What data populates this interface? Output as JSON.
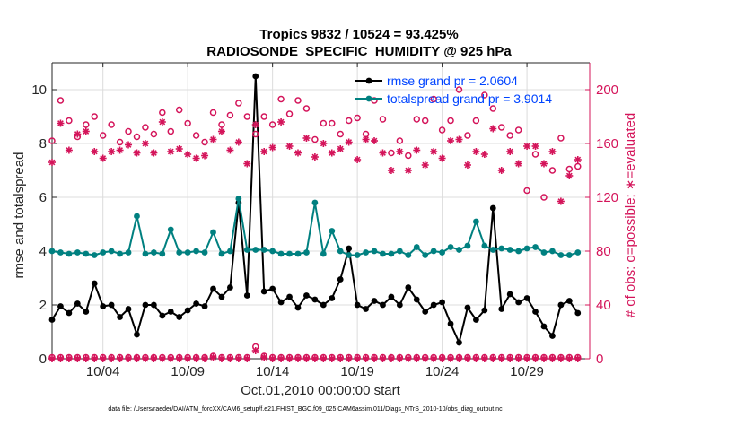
{
  "chart_data": {
    "type": "line",
    "title": "Tropics 9832 / 10524 = 93.425%",
    "subtitle": "RADIOSONDE_SPECIFIC_HUMIDITY @ 925 hPa",
    "xlabel": "Oct.01,2010 00:00:00 start",
    "ylabel_left": "rmse and totalspread",
    "ylabel_right": "# of obs: o=possible; ∗=evaluated",
    "footer": "data file: /Users/raeder/DAI/ATM_forcXX/CAM6_setup/f.e21.FHIST_BGC.f09_025.CAM6assim.011/Diags_NTrS_2010-10/obs_diag_output.nc",
    "xlim": [
      1,
      32.7
    ],
    "ylim_left": [
      0,
      11
    ],
    "ylim_right": [
      0,
      220
    ],
    "x_ticks": [
      4,
      9,
      14,
      19,
      24,
      29
    ],
    "x_tick_labels": [
      "10/04",
      "10/09",
      "10/14",
      "10/19",
      "10/24",
      "10/29"
    ],
    "y_ticks_left": [
      0,
      2,
      4,
      6,
      8,
      10
    ],
    "y_ticks_right": [
      0,
      40,
      80,
      120,
      160,
      200
    ],
    "grid": true,
    "colors": {
      "rmse": "#000000",
      "totalspread": "#008080",
      "obs": "#d4145a",
      "legend_text": "#0044ff"
    },
    "series": [
      {
        "name": "rmse grand pr = 2.0604",
        "axis": "left",
        "style": "line-markers",
        "x": [
          1,
          1.5,
          2,
          2.5,
          3,
          3.5,
          4,
          4.5,
          5,
          5.5,
          6,
          6.5,
          7,
          7.5,
          8,
          8.5,
          9,
          9.5,
          10,
          10.5,
          11,
          11.5,
          12,
          12.5,
          13,
          13.5,
          14,
          14.5,
          15,
          15.5,
          16,
          16.5,
          17,
          17.5,
          18,
          18.5,
          19,
          19.5,
          20,
          20.5,
          21,
          21.5,
          22,
          22.5,
          23,
          23.5,
          24,
          24.5,
          25,
          25.5,
          26,
          26.5,
          27,
          27.5,
          28,
          28.5,
          29,
          29.5,
          30,
          30.5,
          31,
          31.5,
          32
        ],
        "values": [
          1.45,
          1.95,
          1.7,
          2.05,
          1.75,
          2.8,
          1.95,
          2.0,
          1.55,
          1.85,
          0.9,
          2.0,
          2.0,
          1.6,
          1.75,
          1.55,
          1.8,
          2.05,
          1.95,
          2.6,
          2.3,
          2.65,
          5.8,
          2.35,
          10.5,
          2.5,
          2.6,
          2.1,
          2.3,
          1.9,
          2.35,
          2.2,
          2.0,
          2.25,
          2.95,
          4.1,
          2.0,
          1.85,
          2.15,
          2.0,
          2.3,
          2.0,
          2.65,
          2.2,
          1.75,
          2.0,
          2.1,
          1.3,
          0.6,
          1.9,
          1.45,
          1.8,
          5.6,
          1.85,
          2.4,
          2.1,
          2.25,
          1.75,
          1.2,
          0.85,
          2.0,
          2.15,
          1.7
        ]
      },
      {
        "name": "totalspread grand pr = 3.9014",
        "axis": "left",
        "style": "line-markers",
        "x": [
          1,
          1.5,
          2,
          2.5,
          3,
          3.5,
          4,
          4.5,
          5,
          5.5,
          6,
          6.5,
          7,
          7.5,
          8,
          8.5,
          9,
          9.5,
          10,
          10.5,
          11,
          11.5,
          12,
          12.5,
          13,
          13.5,
          14,
          14.5,
          15,
          15.5,
          16,
          16.5,
          17,
          17.5,
          18,
          18.5,
          19,
          19.5,
          20,
          20.5,
          21,
          21.5,
          22,
          22.5,
          23,
          23.5,
          24,
          24.5,
          25,
          25.5,
          26,
          26.5,
          27,
          27.5,
          28,
          28.5,
          29,
          29.5,
          30,
          30.5,
          31,
          31.5,
          32
        ],
        "values": [
          4.0,
          3.95,
          3.9,
          3.95,
          3.9,
          3.85,
          3.95,
          4.0,
          3.9,
          3.95,
          5.3,
          3.9,
          3.95,
          3.9,
          4.8,
          3.95,
          3.95,
          4.0,
          3.95,
          4.7,
          3.9,
          4.0,
          5.95,
          4.05,
          4.05,
          4.05,
          4.0,
          3.9,
          3.9,
          3.9,
          3.95,
          5.8,
          3.9,
          4.75,
          4.0,
          3.85,
          3.85,
          3.95,
          4.0,
          3.9,
          3.9,
          4.0,
          3.85,
          4.15,
          3.85,
          4.0,
          3.95,
          4.15,
          4.05,
          4.2,
          5.1,
          4.2,
          4.05,
          4.1,
          4.05,
          4.0,
          4.1,
          4.15,
          3.95,
          4.0,
          3.85,
          3.85,
          3.95
        ]
      },
      {
        "name": "obs possible",
        "axis": "right",
        "style": "circles",
        "x": [
          1,
          1.5,
          2,
          2.5,
          3,
          3.5,
          4,
          4.5,
          5,
          5.5,
          6,
          6.5,
          7,
          7.5,
          8,
          8.5,
          9,
          9.5,
          10,
          10.5,
          11,
          11.5,
          12,
          12.5,
          13,
          13.5,
          14,
          14.5,
          15,
          15.5,
          16,
          16.5,
          17,
          17.5,
          18,
          18.5,
          19,
          19.5,
          20,
          20.5,
          21,
          21.5,
          22,
          22.5,
          23,
          23.5,
          24,
          24.5,
          25,
          25.5,
          26,
          26.5,
          27,
          27.5,
          28,
          28.5,
          29,
          29.5,
          30,
          30.5,
          31,
          31.5,
          32
        ],
        "values": [
          162,
          192,
          177,
          165,
          174,
          180,
          166,
          174,
          161,
          169,
          165,
          172,
          167,
          183,
          169,
          185,
          175,
          166,
          161,
          183,
          174,
          181,
          190,
          180,
          167,
          180,
          174,
          193,
          182,
          192,
          186,
          163,
          175,
          175,
          167,
          177,
          179,
          167,
          192,
          178,
          153,
          162,
          151,
          178,
          177,
          193,
          170,
          177,
          200,
          166,
          177,
          196,
          186,
          172,
          166,
          170,
          125,
          152,
          120,
          140,
          164,
          141,
          143
        ]
      },
      {
        "name": "obs evaluated",
        "axis": "right",
        "style": "stars",
        "x": [
          1,
          1.5,
          2,
          2.5,
          3,
          3.5,
          4,
          4.5,
          5,
          5.5,
          6,
          6.5,
          7,
          7.5,
          8,
          8.5,
          9,
          9.5,
          10,
          10.5,
          11,
          11.5,
          12,
          12.5,
          13,
          13.5,
          14,
          14.5,
          15,
          15.5,
          16,
          16.5,
          17,
          17.5,
          18,
          18.5,
          19,
          19.5,
          20,
          20.5,
          21,
          21.5,
          22,
          22.5,
          23,
          23.5,
          24,
          24.5,
          25,
          25.5,
          26,
          26.5,
          27,
          27.5,
          28,
          28.5,
          29,
          29.5,
          30,
          30.5,
          31,
          31.5,
          32
        ],
        "values": [
          146,
          175,
          155,
          167,
          169,
          154,
          149,
          154,
          155,
          159,
          153,
          160,
          153,
          176,
          154,
          156,
          152,
          149,
          151,
          163,
          169,
          155,
          161,
          145,
          174,
          154,
          157,
          176,
          158,
          153,
          164,
          150,
          160,
          153,
          156,
          161,
          148,
          163,
          162,
          153,
          140,
          154,
          140,
          155,
          144,
          154,
          149,
          162,
          163,
          144,
          154,
          152,
          171,
          140,
          154,
          145,
          158,
          158,
          145,
          154,
          117,
          136,
          148
        ]
      },
      {
        "name": "obs bottom possible",
        "axis": "right",
        "style": "circles",
        "x": [
          1,
          1.5,
          2,
          2.5,
          3,
          3.5,
          4,
          4.5,
          5,
          5.5,
          6,
          6.5,
          7,
          7.5,
          8,
          8.5,
          9,
          9.5,
          10,
          10.5,
          11,
          11.5,
          12,
          12.5,
          13,
          13.5,
          14,
          14.5,
          15,
          15.5,
          16,
          16.5,
          17,
          17.5,
          18,
          18.5,
          19,
          19.5,
          20,
          20.5,
          21,
          21.5,
          22,
          22.5,
          23,
          23.5,
          24,
          24.5,
          25,
          25.5,
          26,
          26.5,
          27,
          27.5,
          28,
          28.5,
          29,
          29.5,
          30,
          30.5,
          31,
          31.5,
          32
        ],
        "values": [
          1,
          1,
          1,
          1,
          1,
          1,
          1,
          1,
          1,
          1,
          1,
          1,
          1,
          1,
          1,
          1,
          1,
          1,
          1,
          2,
          1,
          1,
          1,
          1,
          9,
          2,
          1,
          1,
          1,
          1,
          1,
          1,
          1,
          1,
          1,
          1,
          1,
          1,
          1,
          1,
          1,
          1,
          1,
          1,
          1,
          1,
          1,
          1,
          1,
          1,
          1,
          1,
          1,
          1,
          1,
          1,
          1,
          1,
          1,
          1,
          1,
          1,
          1
        ]
      },
      {
        "name": "obs bottom evaluated",
        "axis": "right",
        "style": "stars",
        "x": [
          1,
          1.5,
          2,
          2.5,
          3,
          3.5,
          4,
          4.5,
          5,
          5.5,
          6,
          6.5,
          7,
          7.5,
          8,
          8.5,
          9,
          9.5,
          10,
          10.5,
          11,
          11.5,
          12,
          12.5,
          13,
          13.5,
          14,
          14.5,
          15,
          15.5,
          16,
          16.5,
          17,
          17.5,
          18,
          18.5,
          19,
          19.5,
          20,
          20.5,
          21,
          21.5,
          22,
          22.5,
          23,
          23.5,
          24,
          24.5,
          25,
          25.5,
          26,
          26.5,
          27,
          27.5,
          28,
          28.5,
          29,
          29.5,
          30,
          30.5,
          31,
          31.5,
          32
        ],
        "values": [
          0,
          0,
          0,
          0,
          0,
          0,
          0,
          0,
          0,
          0,
          0,
          0,
          0,
          0,
          0,
          0,
          0,
          0,
          0,
          1,
          0,
          0,
          0,
          0,
          6,
          1,
          0,
          0,
          0,
          0,
          0,
          0,
          0,
          0,
          0,
          0,
          0,
          0,
          0,
          0,
          0,
          0,
          0,
          0,
          0,
          0,
          0,
          0,
          0,
          0,
          0,
          0,
          0,
          0,
          0,
          0,
          0,
          0,
          0,
          0,
          0,
          0,
          0
        ]
      }
    ]
  }
}
